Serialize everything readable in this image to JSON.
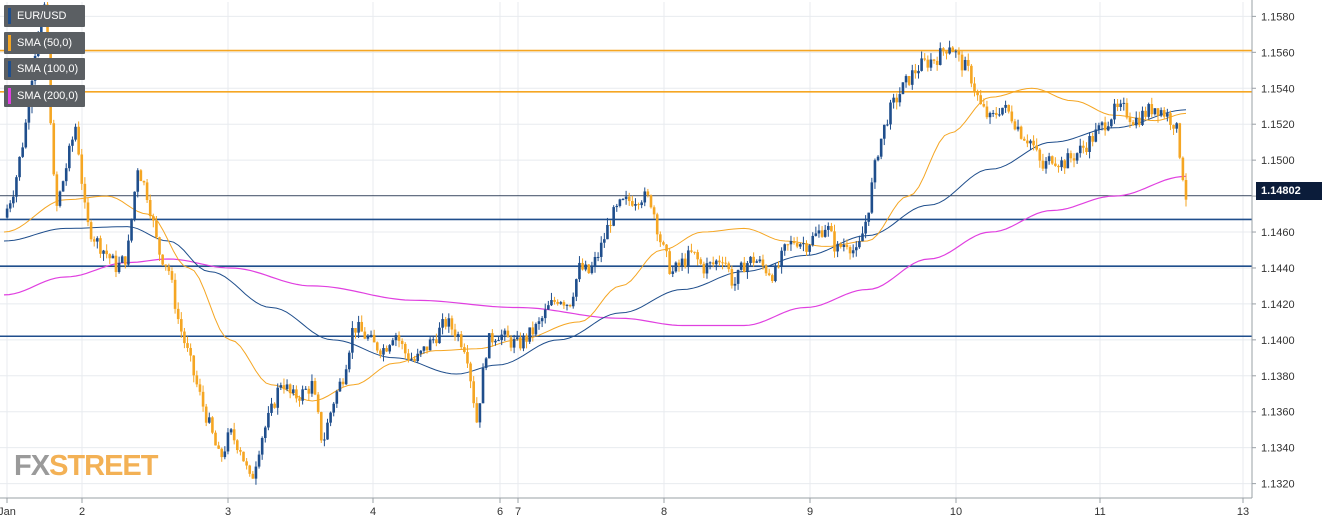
{
  "chart_data": {
    "type": "candlestick",
    "symbol": "EUR/USD",
    "x_tick_labels": [
      "Jan",
      "2",
      "3",
      "4",
      "6",
      "7",
      "8",
      "9",
      "10",
      "11",
      "13"
    ],
    "y_tick_labels": [
      "1.1580",
      "1.1560",
      "1.1540",
      "1.1520",
      "1.1500",
      "1.1480",
      "1.1460",
      "1.1440",
      "1.1420",
      "1.1400",
      "1.1380",
      "1.1360",
      "1.1340",
      "1.1320"
    ],
    "ylim": [
      1.1312,
      1.1588
    ],
    "last_price": 1.14802,
    "last_price_label": "1.14802",
    "legend": [
      {
        "label": "EUR/USD",
        "color": "#1f4e8c"
      },
      {
        "label": "SMA (50,0)",
        "color": "#f5a623"
      },
      {
        "label": "SMA (100,0)",
        "color": "#1f4e8c"
      },
      {
        "label": "SMA (200,0)",
        "color": "#e040e0"
      }
    ],
    "horizontal_levels": [
      {
        "value": 1.1561,
        "color": "#f5a623"
      },
      {
        "value": 1.1538,
        "color": "#f5a623"
      },
      {
        "value": 1.1467,
        "color": "#1f4e8c"
      },
      {
        "value": 1.1441,
        "color": "#1f4e8c"
      },
      {
        "value": 1.1402,
        "color": "#1f4e8c"
      }
    ],
    "price_path": [
      [
        0,
        1.1468
      ],
      [
        1,
        1.1485
      ],
      [
        2,
        1.1515
      ],
      [
        3,
        1.156
      ],
      [
        4,
        1.1588
      ],
      [
        5,
        1.147
      ],
      [
        6,
        1.1495
      ],
      [
        7,
        1.152
      ],
      [
        8,
        1.1465
      ],
      [
        9,
        1.1455
      ],
      [
        10,
        1.1448
      ],
      [
        11,
        1.144
      ],
      [
        12,
        1.1447
      ],
      [
        13,
        1.1497
      ],
      [
        14,
        1.148
      ],
      [
        15,
        1.145
      ],
      [
        16,
        1.144
      ],
      [
        17,
        1.141
      ],
      [
        18,
        1.139
      ],
      [
        19,
        1.137
      ],
      [
        20,
        1.1352
      ],
      [
        21,
        1.1333
      ],
      [
        22,
        1.1348
      ],
      [
        23,
        1.134
      ],
      [
        24,
        1.132
      ],
      [
        25,
        1.1345
      ],
      [
        26,
        1.136
      ],
      [
        27,
        1.1378
      ],
      [
        28,
        1.1368
      ],
      [
        29,
        1.137
      ],
      [
        30,
        1.1375
      ],
      [
        31,
        1.1342
      ],
      [
        32,
        1.1365
      ],
      [
        33,
        1.138
      ],
      [
        34,
        1.1408
      ],
      [
        35,
        1.1403
      ],
      [
        36,
        1.1397
      ],
      [
        37,
        1.1395
      ],
      [
        38,
        1.1405
      ],
      [
        39,
        1.1393
      ],
      [
        40,
        1.1388
      ],
      [
        41,
        1.1395
      ],
      [
        42,
        1.1402
      ],
      [
        43,
        1.141
      ],
      [
        44,
        1.1404
      ],
      [
        45,
        1.1395
      ],
      [
        46,
        1.1355
      ],
      [
        47,
        1.1398
      ],
      [
        48,
        1.1404
      ],
      [
        49,
        1.14
      ],
      [
        50,
        1.1397
      ],
      [
        51,
        1.1402
      ],
      [
        52,
        1.1408
      ],
      [
        53,
        1.1418
      ],
      [
        54,
        1.1424
      ],
      [
        55,
        1.142
      ],
      [
        56,
        1.144
      ],
      [
        57,
        1.1437
      ],
      [
        58,
        1.145
      ],
      [
        59,
        1.1467
      ],
      [
        60,
        1.1475
      ],
      [
        61,
        1.1478
      ],
      [
        62,
        1.148
      ],
      [
        63,
        1.1477
      ],
      [
        64,
        1.1452
      ],
      [
        65,
        1.1437
      ],
      [
        66,
        1.1443
      ],
      [
        67,
        1.1448
      ],
      [
        68,
        1.144
      ],
      [
        69,
        1.1442
      ],
      [
        70,
        1.1447
      ],
      [
        71,
        1.143
      ],
      [
        72,
        1.1442
      ],
      [
        73,
        1.1445
      ],
      [
        74,
        1.144
      ],
      [
        75,
        1.1436
      ],
      [
        76,
        1.145
      ],
      [
        77,
        1.1456
      ],
      [
        78,
        1.1453
      ],
      [
        79,
        1.1458
      ],
      [
        80,
        1.1464
      ],
      [
        81,
        1.145
      ],
      [
        82,
        1.1455
      ],
      [
        83,
        1.1447
      ],
      [
        84,
        1.147
      ],
      [
        85,
        1.1505
      ],
      [
        86,
        1.1525
      ],
      [
        87,
        1.1536
      ],
      [
        88,
        1.1545
      ],
      [
        89,
        1.1552
      ],
      [
        90,
        1.1555
      ],
      [
        91,
        1.1558
      ],
      [
        92,
        1.1565
      ],
      [
        93,
        1.1555
      ],
      [
        94,
        1.1548
      ],
      [
        95,
        1.153
      ],
      [
        96,
        1.1522
      ],
      [
        97,
        1.153
      ],
      [
        98,
        1.1525
      ],
      [
        99,
        1.1515
      ],
      [
        100,
        1.151
      ],
      [
        101,
        1.1495
      ],
      [
        102,
        1.1502
      ],
      [
        103,
        1.1498
      ],
      [
        104,
        1.1502
      ],
      [
        105,
        1.1507
      ],
      [
        106,
        1.1513
      ],
      [
        107,
        1.152
      ],
      [
        108,
        1.1527
      ],
      [
        109,
        1.1528
      ],
      [
        110,
        1.1522
      ],
      [
        111,
        1.1526
      ],
      [
        112,
        1.153
      ],
      [
        113,
        1.1526
      ],
      [
        114,
        1.152
      ],
      [
        115,
        1.148
      ]
    ],
    "sma_50": [
      [
        0,
        1.146
      ],
      [
        6,
        1.1478
      ],
      [
        10,
        1.148
      ],
      [
        14,
        1.147
      ],
      [
        18,
        1.144
      ],
      [
        22,
        1.14
      ],
      [
        26,
        1.1375
      ],
      [
        30,
        1.1366
      ],
      [
        34,
        1.1375
      ],
      [
        38,
        1.1387
      ],
      [
        42,
        1.1394
      ],
      [
        46,
        1.1395
      ],
      [
        50,
        1.14
      ],
      [
        56,
        1.141
      ],
      [
        60,
        1.143
      ],
      [
        64,
        1.145
      ],
      [
        68,
        1.146
      ],
      [
        72,
        1.1462
      ],
      [
        76,
        1.1455
      ],
      [
        80,
        1.1452
      ],
      [
        84,
        1.1455
      ],
      [
        88,
        1.148
      ],
      [
        92,
        1.1515
      ],
      [
        96,
        1.1535
      ],
      [
        100,
        1.154
      ],
      [
        104,
        1.1533
      ],
      [
        108,
        1.1525
      ],
      [
        112,
        1.1522
      ],
      [
        115,
        1.1526
      ]
    ],
    "sma_100": [
      [
        0,
        1.1455
      ],
      [
        6,
        1.1462
      ],
      [
        12,
        1.1463
      ],
      [
        16,
        1.1455
      ],
      [
        20,
        1.1438
      ],
      [
        26,
        1.1418
      ],
      [
        32,
        1.14
      ],
      [
        38,
        1.139
      ],
      [
        44,
        1.1381
      ],
      [
        48,
        1.1386
      ],
      [
        54,
        1.14
      ],
      [
        60,
        1.1415
      ],
      [
        66,
        1.1428
      ],
      [
        72,
        1.1438
      ],
      [
        78,
        1.1447
      ],
      [
        84,
        1.1458
      ],
      [
        90,
        1.1475
      ],
      [
        96,
        1.1495
      ],
      [
        102,
        1.151
      ],
      [
        108,
        1.1518
      ],
      [
        115,
        1.1528
      ]
    ],
    "sma_200": [
      [
        0,
        1.1425
      ],
      [
        6,
        1.1435
      ],
      [
        12,
        1.1443
      ],
      [
        16,
        1.1445
      ],
      [
        22,
        1.144
      ],
      [
        30,
        1.143
      ],
      [
        40,
        1.1422
      ],
      [
        50,
        1.1418
      ],
      [
        60,
        1.1412
      ],
      [
        66,
        1.1408
      ],
      [
        72,
        1.1408
      ],
      [
        78,
        1.1418
      ],
      [
        84,
        1.1428
      ],
      [
        90,
        1.1445
      ],
      [
        96,
        1.146
      ],
      [
        102,
        1.1472
      ],
      [
        108,
        1.148
      ],
      [
        115,
        1.1491
      ]
    ]
  },
  "watermark": {
    "part1": "FX",
    "part2": "STREET"
  }
}
